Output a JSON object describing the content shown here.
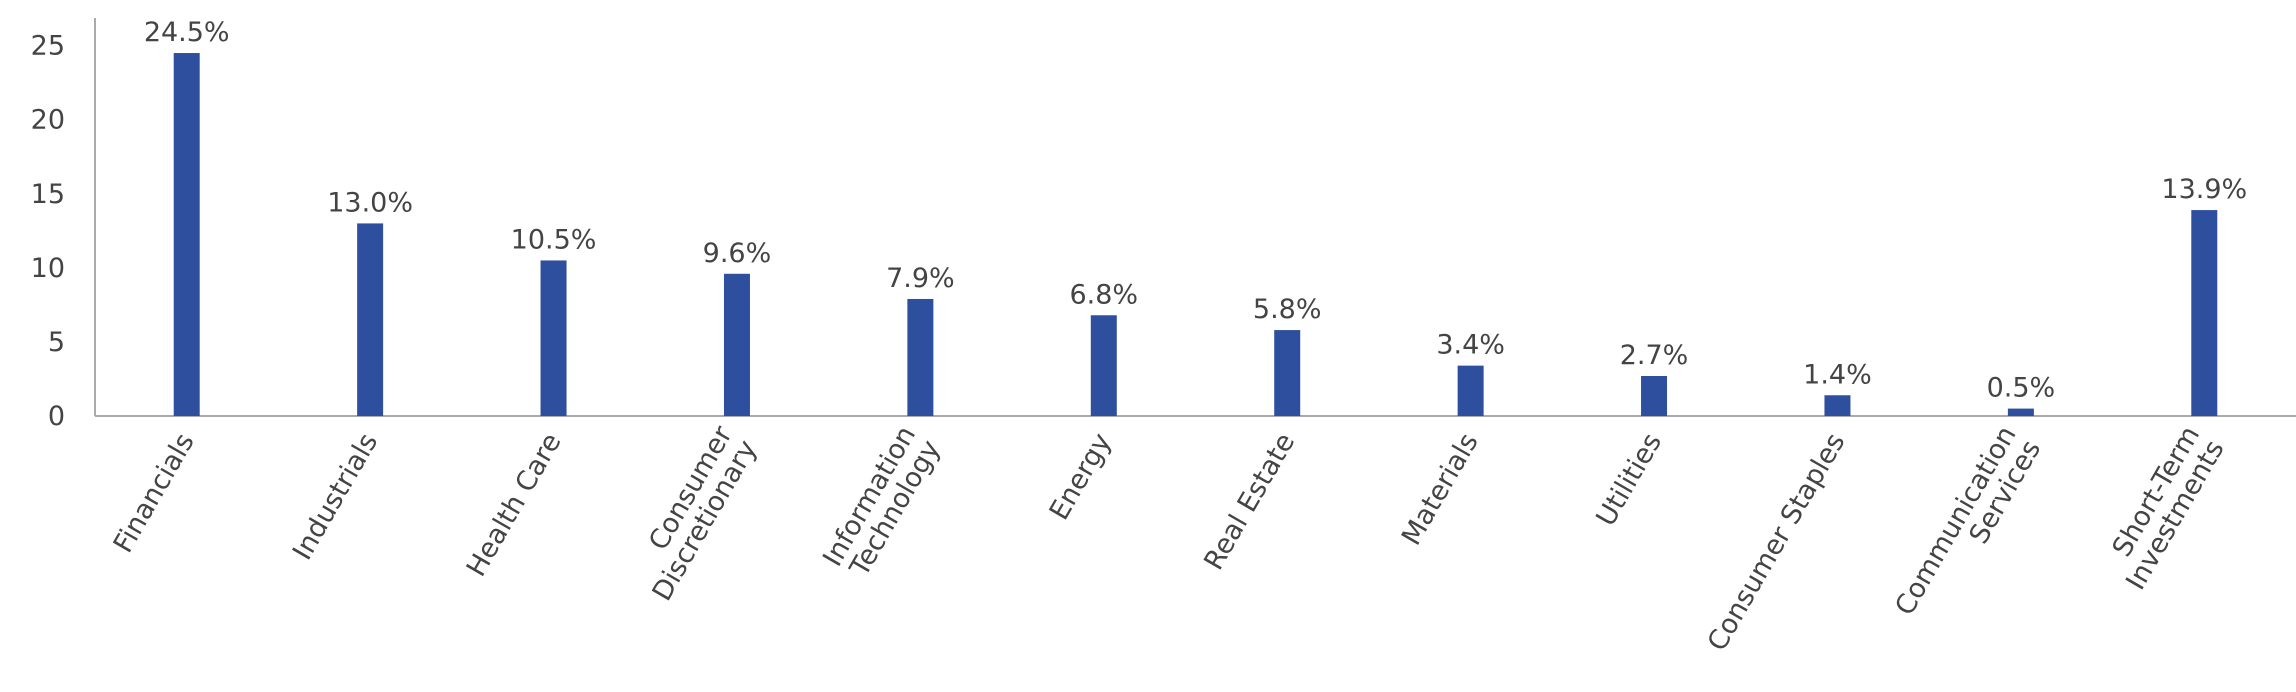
{
  "chart_data": {
    "type": "bar",
    "categories": [
      "Financials",
      "Industrials",
      "Health Care",
      "Consumer\nDiscretionary",
      "Information\nTechnology",
      "Energy",
      "Real Estate",
      "Materials",
      "Utilities",
      "Consumer Staples",
      "Communication\nServices",
      "Short-Term\nInvestments"
    ],
    "values": [
      24.5,
      13.0,
      10.5,
      9.6,
      7.9,
      6.8,
      5.8,
      3.4,
      2.7,
      1.4,
      0.5,
      13.9
    ],
    "value_labels": [
      "24.5%",
      "13.0%",
      "10.5%",
      "9.6%",
      "7.9%",
      "6.8%",
      "5.8%",
      "3.4%",
      "2.7%",
      "1.4%",
      "0.5%",
      "13.9%"
    ],
    "color": "#2e4f9e",
    "ylim": [
      0,
      27
    ],
    "yticks": [
      0,
      5,
      10,
      15,
      20,
      25
    ],
    "grid": false
  }
}
